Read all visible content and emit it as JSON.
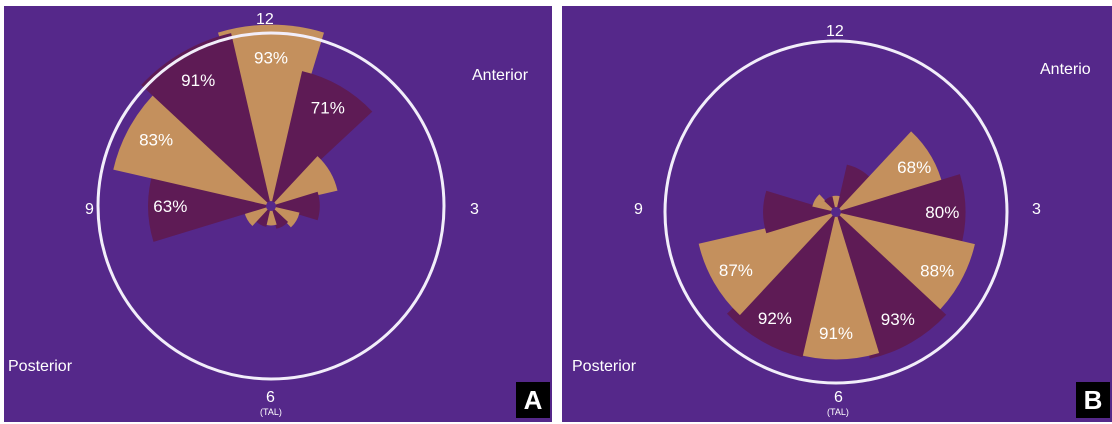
{
  "chart_data": [
    {
      "type": "polar-bar",
      "panel_label": "A",
      "clock_labels": {
        "top": "12",
        "right": "3",
        "bottom": "6",
        "bottom_sub": "(TAL)",
        "left": "9"
      },
      "region_labels": {
        "top_right": "Anterior",
        "bottom_left": "Posterior"
      },
      "sectors": [
        {
          "clock_hour": 12,
          "value": 93,
          "label": "93%",
          "color": "#c4905d"
        },
        {
          "clock_hour": 1,
          "value": 71,
          "label": "71%",
          "color": "#5e1b55"
        },
        {
          "clock_hour": 2,
          "value": 35,
          "label": "",
          "color": "#c4905d"
        },
        {
          "clock_hour": 3,
          "value": 25,
          "label": "",
          "color": "#5e1b55"
        },
        {
          "clock_hour": 4,
          "value": 15,
          "label": "",
          "color": "#c4905d"
        },
        {
          "clock_hour": 5,
          "value": 12,
          "label": "",
          "color": "#5e1b55"
        },
        {
          "clock_hour": 6,
          "value": 10,
          "label": "",
          "color": "#c4905d"
        },
        {
          "clock_hour": 7,
          "value": 11,
          "label": "",
          "color": "#5e1b55"
        },
        {
          "clock_hour": 8,
          "value": 14,
          "label": "",
          "color": "#c4905d"
        },
        {
          "clock_hour": 9,
          "value": 63,
          "label": "63%",
          "color": "#5e1b55"
        },
        {
          "clock_hour": 10,
          "value": 83,
          "label": "83%",
          "color": "#c4905d"
        },
        {
          "clock_hour": 11,
          "value": 91,
          "label": "91%",
          "color": "#5e1b55"
        }
      ]
    },
    {
      "type": "polar-bar",
      "panel_label": "B",
      "clock_labels": {
        "top": "12",
        "right": "3",
        "bottom": "6",
        "bottom_sub": "(TAL)",
        "left": "9"
      },
      "region_labels": {
        "top_right": "Anterio",
        "bottom_left": "Posterior"
      },
      "sectors": [
        {
          "clock_hour": 12,
          "value": 10,
          "label": "",
          "color": "#c4905d"
        },
        {
          "clock_hour": 1,
          "value": 30,
          "label": "",
          "color": "#5e1b55"
        },
        {
          "clock_hour": 2,
          "value": 68,
          "label": "68%",
          "color": "#c4905d"
        },
        {
          "clock_hour": 3,
          "value": 80,
          "label": "80%",
          "color": "#5e1b55"
        },
        {
          "clock_hour": 4,
          "value": 88,
          "label": "88%",
          "color": "#c4905d"
        },
        {
          "clock_hour": 5,
          "value": 93,
          "label": "93%",
          "color": "#5e1b55"
        },
        {
          "clock_hour": 6,
          "value": 91,
          "label": "91%",
          "color": "#c4905d"
        },
        {
          "clock_hour": 7,
          "value": 92,
          "label": "92%",
          "color": "#5e1b55"
        },
        {
          "clock_hour": 8,
          "value": 87,
          "label": "87%",
          "color": "#c4905d"
        },
        {
          "clock_hour": 9,
          "value": 45,
          "label": "",
          "color": "#5e1b55"
        },
        {
          "clock_hour": 10,
          "value": 15,
          "label": "",
          "color": "#c4905d"
        },
        {
          "clock_hour": 11,
          "value": 10,
          "label": "",
          "color": "#5e1b55"
        }
      ]
    }
  ],
  "colors": {
    "background": "#55288a",
    "circle": "#f2eefa",
    "text": "#ffffff",
    "panel_tag_bg": "#000000"
  }
}
